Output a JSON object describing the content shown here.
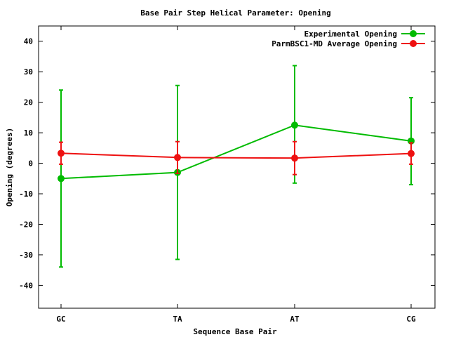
{
  "chart_data": {
    "type": "line",
    "title": "Base Pair Step Helical Parameter: Opening",
    "xlabel": "Sequence Base Pair",
    "ylabel": "Opening (degrees)",
    "categories": [
      "GC",
      "TA",
      "AT",
      "CG"
    ],
    "ylim": [
      -47.5,
      45
    ],
    "yticks": [
      -40,
      -30,
      -20,
      -10,
      0,
      10,
      20,
      30,
      40
    ],
    "grid": false,
    "legend_position": "top-right",
    "series": [
      {
        "name": "Experimental Opening",
        "color": "#00bb00",
        "values": [
          -5.0,
          -3.0,
          12.5,
          7.3
        ],
        "err_low": [
          -34.0,
          -31.5,
          -6.5,
          -7.0
        ],
        "err_high": [
          24.0,
          25.5,
          32.0,
          21.5
        ]
      },
      {
        "name": "ParmBSC1-MD Average Opening",
        "color": "#ee1111",
        "values": [
          3.3,
          1.9,
          1.7,
          3.2
        ],
        "err_low": [
          -0.3,
          -3.3,
          -3.7,
          -0.3
        ],
        "err_high": [
          6.9,
          7.1,
          7.1,
          6.7
        ]
      }
    ]
  }
}
